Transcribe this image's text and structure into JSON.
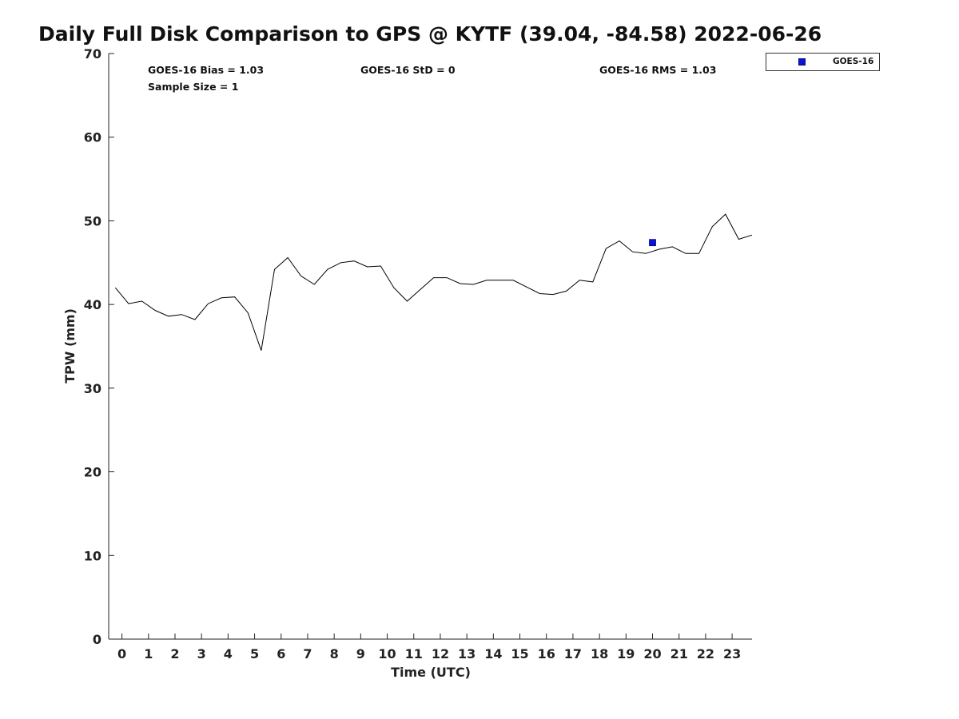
{
  "chart_data": {
    "type": "line",
    "title": "Daily Full Disk Comparison to GPS @ KYTF (39.04, -84.58) 2022-06-26",
    "xlabel": "Time (UTC)",
    "ylabel": "TPW (mm)",
    "xlim": [
      -0.5,
      23.75
    ],
    "ylim": [
      0,
      70
    ],
    "xticks": [
      0,
      1,
      2,
      3,
      4,
      5,
      6,
      7,
      8,
      9,
      10,
      11,
      12,
      13,
      14,
      15,
      16,
      17,
      18,
      19,
      20,
      21,
      22,
      23
    ],
    "yticks": [
      0,
      10,
      20,
      30,
      40,
      50,
      60,
      70
    ],
    "grid": false,
    "legend_position": "top-right, outside plot",
    "stats": {
      "bias": "GOES-16 Bias = 1.03",
      "std": "GOES-16 StD = 0",
      "rms": "GOES-16 RMS = 1.03",
      "sample": "Sample Size = 1"
    },
    "series": [
      {
        "type": "line",
        "color": "#000000",
        "x": [
          -0.25,
          0.25,
          0.75,
          1.25,
          1.75,
          2.25,
          2.75,
          3.25,
          3.75,
          4.25,
          4.75,
          5.25,
          5.75,
          6.25,
          6.75,
          7.25,
          7.75,
          8.25,
          8.75,
          9.25,
          9.75,
          10.25,
          10.75,
          11.25,
          11.75,
          12.25,
          12.75,
          13.25,
          13.75,
          14.25,
          14.75,
          15.25,
          15.75,
          16.25,
          16.75,
          17.25,
          17.75,
          18.25,
          18.75,
          19.25,
          19.75,
          20.25,
          20.75,
          21.25,
          21.75,
          22.25,
          22.75,
          23.25,
          23.75
        ],
        "y": [
          42.0,
          40.1,
          40.4,
          39.3,
          38.6,
          38.8,
          38.2,
          40.1,
          40.8,
          40.9,
          39.0,
          34.5,
          44.2,
          45.6,
          43.4,
          42.4,
          44.2,
          45.0,
          45.2,
          44.5,
          44.6,
          42.0,
          40.4,
          41.8,
          43.2,
          43.2,
          42.5,
          42.4,
          42.9,
          42.9,
          42.9,
          42.1,
          41.3,
          41.2,
          41.6,
          42.9,
          42.7,
          46.7,
          47.6,
          46.3,
          46.1,
          46.6,
          46.9,
          46.1,
          46.1,
          49.3,
          50.8,
          47.8,
          48.3
        ]
      },
      {
        "name": "GOES-16",
        "type": "scatter",
        "marker": "square",
        "color": "#0b13d8",
        "x": [
          20.0
        ],
        "y": [
          47.4
        ]
      }
    ]
  }
}
